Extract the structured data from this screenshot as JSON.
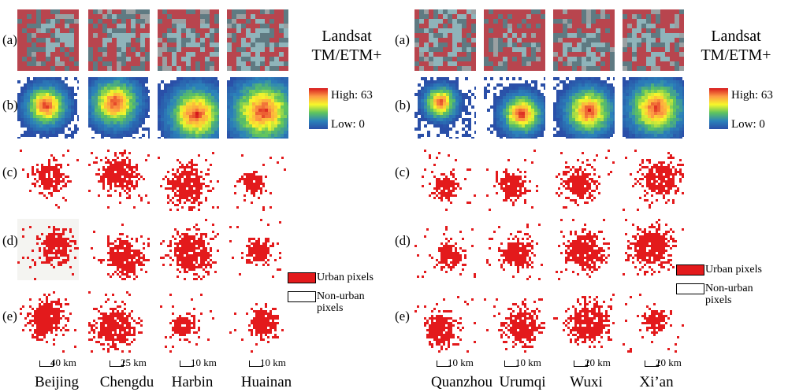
{
  "left": {
    "row_labels": [
      "(a)",
      "(b)",
      "(c)",
      "(d)",
      "(e)"
    ],
    "header": {
      "line1": "Landsat",
      "line2": "TM/ETM+"
    },
    "colorbar": {
      "high": "High: 63",
      "low": "Low: 0"
    },
    "legend": {
      "urban": "Urban pixels",
      "nonurban_line1": "Non-urban",
      "nonurban_line2": "pixels"
    },
    "cities": [
      {
        "name": "Beijing",
        "scale": "40 km"
      },
      {
        "name": "Chengdu",
        "scale": "25 km"
      },
      {
        "name": "Harbin",
        "scale": "10 km"
      },
      {
        "name": "Huainan",
        "scale": "10 km"
      }
    ]
  },
  "right": {
    "row_labels": [
      "(a)",
      "(b)",
      "(c)",
      "(d)",
      "(e)"
    ],
    "header": {
      "line1": "Landsat",
      "line2": "TM/ETM+"
    },
    "colorbar": {
      "high": "High: 63",
      "low": "Low: 0"
    },
    "legend": {
      "urban": "Urban pixels",
      "nonurban_line1": "Non-urban",
      "nonurban_line2": "pixels"
    },
    "cities": [
      {
        "name": "Quanzhou",
        "scale": "10 km"
      },
      {
        "name": "Urumqi",
        "scale": "10 km"
      },
      {
        "name": "Wuxi",
        "scale": "20 km"
      },
      {
        "name": "Xi’an",
        "scale": "20 km"
      }
    ]
  },
  "colors": {
    "urban": "#e31a1c",
    "density_high": "#d7191c",
    "density_low": "#2a4fa8"
  }
}
